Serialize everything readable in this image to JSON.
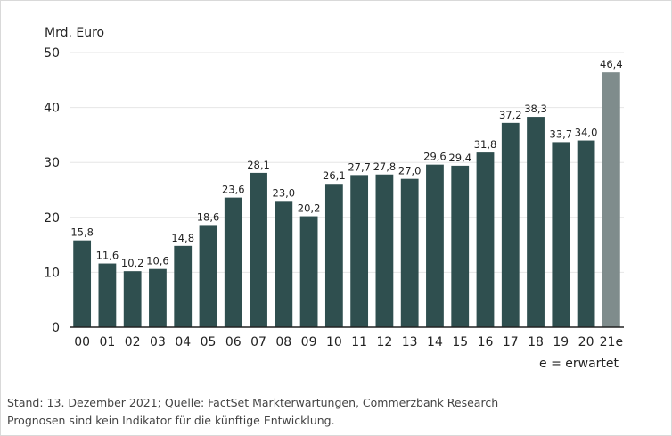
{
  "chart_data": {
    "type": "bar",
    "ylabel": "Mrd. Euro",
    "ylim": [
      0,
      50
    ],
    "yticks": [
      "0",
      "10",
      "20",
      "30",
      "40",
      "50"
    ],
    "yticks_values": [
      0,
      10,
      20,
      30,
      40,
      50
    ],
    "grid": true,
    "categories": [
      "00",
      "01",
      "02",
      "03",
      "04",
      "05",
      "06",
      "07",
      "08",
      "09",
      "10",
      "11",
      "12",
      "13",
      "14",
      "15",
      "16",
      "17",
      "18",
      "19",
      "20",
      "21e"
    ],
    "values": [
      15.8,
      11.6,
      10.2,
      10.6,
      14.8,
      18.6,
      23.6,
      28.1,
      23.0,
      20.2,
      26.1,
      27.7,
      27.8,
      27.0,
      29.6,
      29.4,
      31.8,
      37.2,
      38.3,
      33.7,
      34.0,
      46.4
    ],
    "value_labels": [
      "15,8",
      "11,6",
      "10,2",
      "10,6",
      "14,8",
      "18,6",
      "23,6",
      "28,1",
      "23,0",
      "20,2",
      "26,1",
      "27,7",
      "27,8",
      "27,0",
      "29,6",
      "29,4",
      "31,8",
      "37,2",
      "38,3",
      "33,7",
      "34,0",
      "46,4"
    ],
    "estimated": [
      false,
      false,
      false,
      false,
      false,
      false,
      false,
      false,
      false,
      false,
      false,
      false,
      false,
      false,
      false,
      false,
      false,
      false,
      false,
      false,
      false,
      true
    ],
    "note": "e = erwartet",
    "colors": {
      "actual": "#2f4f4f",
      "estimated": "#7f8c8c",
      "grid": "#e6e6e6",
      "axis": "#222222"
    }
  },
  "footer": {
    "line1": "Stand: 13. Dezember 2021; Quelle: FactSet Markterwartungen, Commerzbank Research",
    "line2": "Prognosen sind kein Indikator für die künftige Entwicklung."
  }
}
